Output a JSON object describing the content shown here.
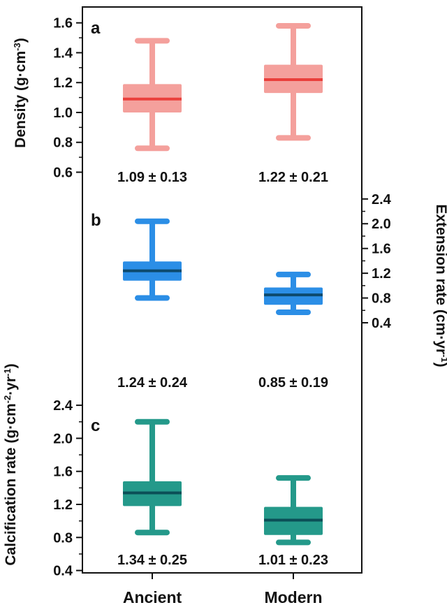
{
  "chart_data": {
    "type": "box",
    "categories": [
      "Ancient",
      "Modern"
    ],
    "panels": [
      {
        "label": "a",
        "ylabel": "Density (g·cm",
        "ylabel_sup": "-3",
        "ylabel_close": ")",
        "axis_side": "left",
        "ylim": [
          0.5,
          1.7
        ],
        "ticks": [
          "0.6",
          "0.8",
          "1.0",
          "1.2",
          "1.4",
          "1.6"
        ],
        "box_color": "#f4a09c",
        "median_color": "#ea3f3b",
        "boxes": [
          {
            "category": "Ancient",
            "min": 0.76,
            "q1": 1.0,
            "median": 1.09,
            "q3": 1.19,
            "max": 1.48,
            "summary": "1.09 ± 0.13"
          },
          {
            "category": "Modern",
            "min": 0.83,
            "q1": 1.13,
            "median": 1.22,
            "q3": 1.32,
            "max": 1.58,
            "summary": "1.22 ± 0.21"
          }
        ]
      },
      {
        "label": "b",
        "ylabel": "Extension rate (cm·yr",
        "ylabel_sup": "-1",
        "ylabel_close": ")",
        "axis_side": "right",
        "ylim": [
          0.2,
          2.6
        ],
        "ticks": [
          "0.4",
          "0.8",
          "1.2",
          "1.6",
          "2.0",
          "2.4"
        ],
        "box_color": "#2b8ee6",
        "median_color": "#0d4a6e",
        "boxes": [
          {
            "category": "Ancient",
            "min": 0.8,
            "q1": 1.08,
            "median": 1.24,
            "q3": 1.39,
            "max": 2.04,
            "summary": "1.24 ± 0.24"
          },
          {
            "category": "Modern",
            "min": 0.57,
            "q1": 0.69,
            "median": 0.85,
            "q3": 0.97,
            "max": 1.18,
            "summary": "0.85 ± 0.19"
          }
        ]
      },
      {
        "label": "c",
        "ylabel": "Calcification rate (g·cm",
        "ylabel_sup": "-2",
        "ylabel_mid": "·yr",
        "ylabel_sup2": "-1",
        "ylabel_close": ")",
        "axis_side": "left",
        "ylim": [
          0.4,
          2.6
        ],
        "ticks": [
          "0.4",
          "0.8",
          "1.2",
          "1.6",
          "2.0",
          "2.4"
        ],
        "box_color": "#24998a",
        "median_color": "#0b4f57",
        "boxes": [
          {
            "category": "Ancient",
            "min": 0.86,
            "q1": 1.18,
            "median": 1.34,
            "q3": 1.48,
            "max": 2.2,
            "summary": "1.34 ± 0.25"
          },
          {
            "category": "Modern",
            "min": 0.74,
            "q1": 0.83,
            "median": 1.01,
            "q3": 1.17,
            "max": 1.52,
            "summary": "1.01 ± 0.23"
          }
        ]
      }
    ]
  }
}
